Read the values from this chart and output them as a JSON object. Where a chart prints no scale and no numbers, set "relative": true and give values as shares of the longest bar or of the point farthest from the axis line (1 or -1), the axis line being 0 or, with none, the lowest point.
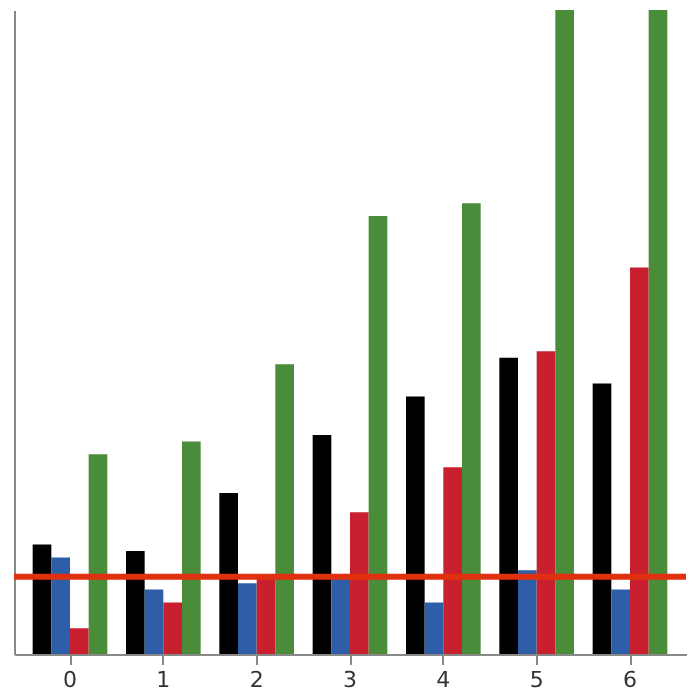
{
  "chart_data": {
    "type": "bar",
    "relative": true,
    "categories": [
      "0",
      "1",
      "2",
      "3",
      "4",
      "5",
      "6"
    ],
    "series": [
      {
        "color": "#000000",
        "values": [
          0.17,
          0.16,
          0.25,
          0.34,
          0.4,
          0.46,
          0.42
        ]
      },
      {
        "color": "#2e5ea8",
        "values": [
          0.15,
          0.1,
          0.11,
          0.12,
          0.08,
          0.13,
          0.1
        ]
      },
      {
        "color": "#c8202e",
        "values": [
          0.04,
          0.08,
          0.12,
          0.22,
          0.29,
          0.47,
          0.6
        ]
      },
      {
        "color": "#4a8c3a",
        "values": [
          0.31,
          0.33,
          0.45,
          0.68,
          0.7,
          1.0,
          1.0
        ]
      }
    ],
    "ref_lines": [
      {
        "axis": "y",
        "value": 0.12,
        "color": "#e03010"
      }
    ],
    "grid": false
  }
}
